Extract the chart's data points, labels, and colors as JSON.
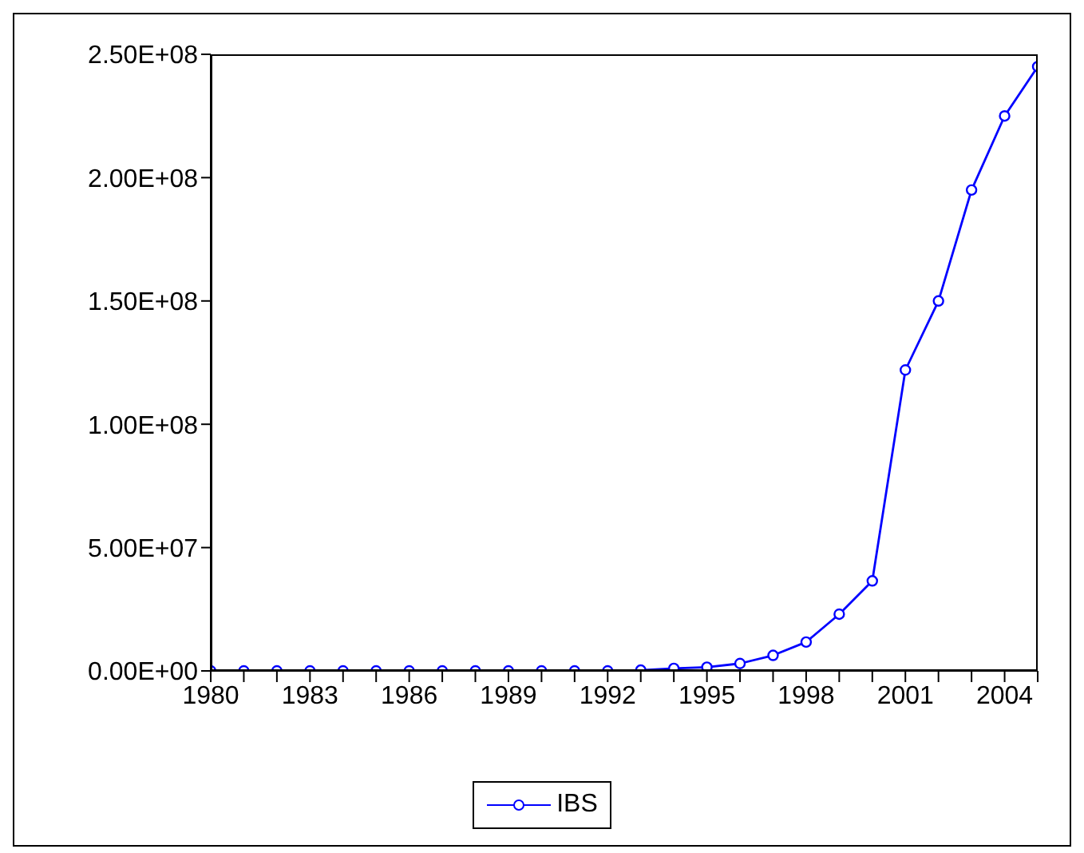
{
  "chart_data": {
    "type": "line",
    "x": [
      1980,
      1981,
      1982,
      1983,
      1984,
      1985,
      1986,
      1987,
      1988,
      1989,
      1990,
      1991,
      1992,
      1993,
      1994,
      1995,
      1996,
      1997,
      1998,
      1999,
      2000,
      2001,
      2002,
      2003,
      2004,
      2005
    ],
    "series": [
      {
        "name": "IBS",
        "color": "#0000ff",
        "values": [
          0,
          0,
          0,
          0,
          0,
          0,
          0,
          0,
          0,
          0,
          0,
          0,
          0,
          300000,
          1000000,
          1500000,
          3000000,
          6300000,
          11700000,
          23000000,
          36500000,
          122000000,
          150000000,
          195000000,
          225000000,
          245000000
        ]
      }
    ],
    "xlim": [
      1980,
      2005
    ],
    "xticks": [
      1980,
      {
        "value": 1981,
        "label": null
      },
      {
        "value": 1982,
        "label": null
      },
      1983,
      {
        "value": 1984,
        "label": null
      },
      {
        "value": 1985,
        "label": null
      },
      1986,
      {
        "value": 1987,
        "label": null
      },
      {
        "value": 1988,
        "label": null
      },
      1989,
      {
        "value": 1990,
        "label": null
      },
      {
        "value": 1991,
        "label": null
      },
      1992,
      {
        "value": 1993,
        "label": null
      },
      {
        "value": 1994,
        "label": null
      },
      1995,
      {
        "value": 1996,
        "label": null
      },
      {
        "value": 1997,
        "label": null
      },
      1998,
      {
        "value": 1999,
        "label": null
      },
      {
        "value": 2000,
        "label": null
      },
      2001,
      {
        "value": 2002,
        "label": null
      },
      {
        "value": 2003,
        "label": null
      },
      2004,
      {
        "value": 2005,
        "label": null
      }
    ],
    "ylim": [
      0,
      250000000
    ],
    "yticks": [
      {
        "value": 0,
        "label": "0.00E+00"
      },
      {
        "value": 50000000,
        "label": "5.00E+07"
      },
      {
        "value": 100000000,
        "label": "1.00E+08"
      },
      {
        "value": 150000000,
        "label": "1.50E+08"
      },
      {
        "value": 200000000,
        "label": "2.00E+08"
      },
      {
        "value": 250000000,
        "label": "2.50E+08"
      }
    ],
    "grid": false,
    "legend": "bottom",
    "marker": "circle",
    "line_style": "solid"
  }
}
